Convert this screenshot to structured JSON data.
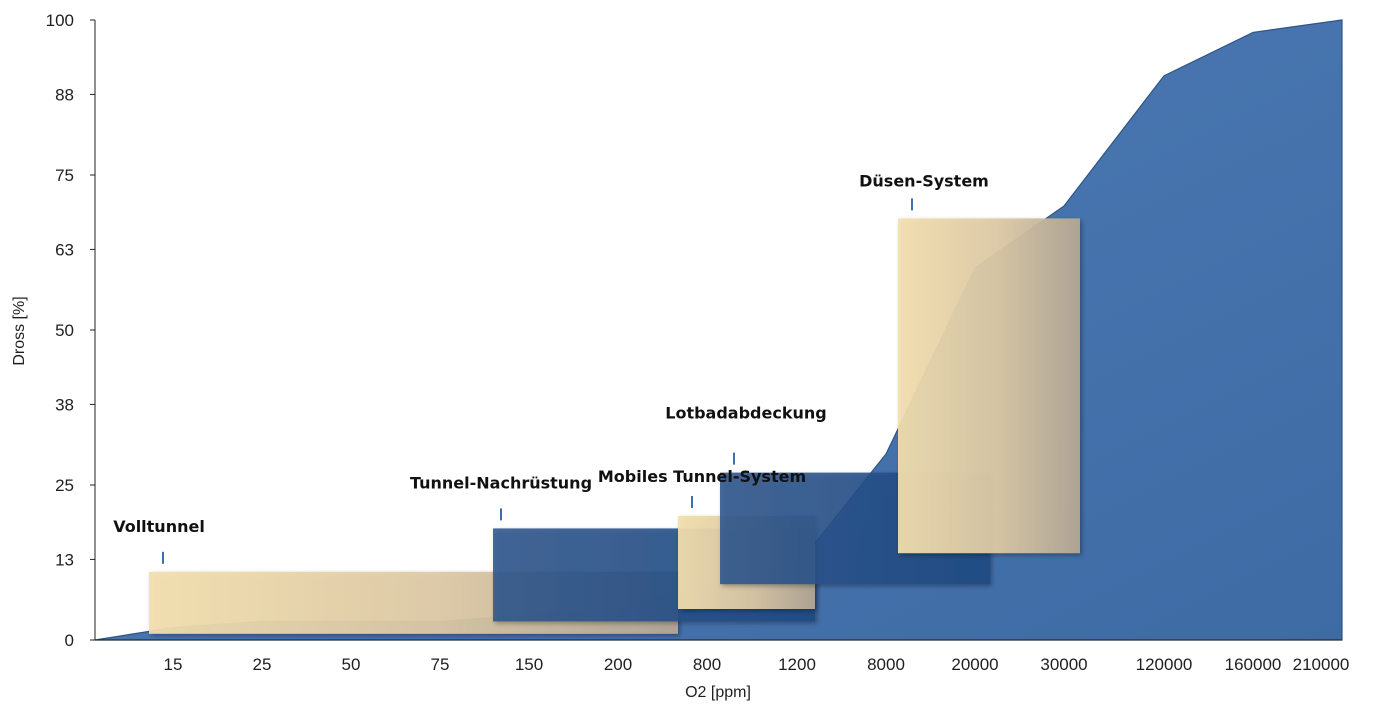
{
  "colors": {
    "area": "#4b78b0",
    "area_edge": "#2f5486",
    "axis": "#222222",
    "leader": "#3e6fb0"
  },
  "chart_data": {
    "type": "area",
    "title": "",
    "xlabel": "O2 [ppm]",
    "ylabel": "Dross [%]",
    "x_scale": "categorical (non-linear)",
    "categories": [
      "15",
      "25",
      "50",
      "75",
      "150",
      "200",
      "800",
      "1200",
      "8000",
      "20000",
      "30000",
      "120000",
      "160000",
      "210000"
    ],
    "yticks": [
      0,
      13,
      25,
      38,
      50,
      63,
      75,
      88,
      100
    ],
    "ylim": [
      0,
      100
    ],
    "grid": false,
    "series": [
      {
        "values": [
          2,
          3,
          3,
          3,
          4,
          5,
          9,
          12,
          30,
          60,
          70,
          91,
          98,
          100
        ]
      }
    ],
    "annotations": [
      {
        "label": "Volltunnel",
        "x_range": [
          "15",
          "200"
        ],
        "y_range": [
          1,
          11
        ],
        "style": "light"
      },
      {
        "label": "Tunnel-Nachrüstung",
        "x_range": [
          "75",
          "1200"
        ],
        "y_range": [
          3,
          18
        ],
        "style": "dark"
      },
      {
        "label": "Mobiles Tunnel-System",
        "x_range": [
          "200",
          "1200"
        ],
        "y_range": [
          5,
          20
        ],
        "style": "light"
      },
      {
        "label": "Lotbadabdeckung",
        "x_range": [
          "800",
          "20000"
        ],
        "y_range": [
          9,
          27
        ],
        "style": "dark"
      },
      {
        "label": "Düsen-System",
        "x_range": [
          "8000",
          "30000"
        ],
        "y_range": [
          14,
          68
        ],
        "style": "light"
      }
    ]
  }
}
